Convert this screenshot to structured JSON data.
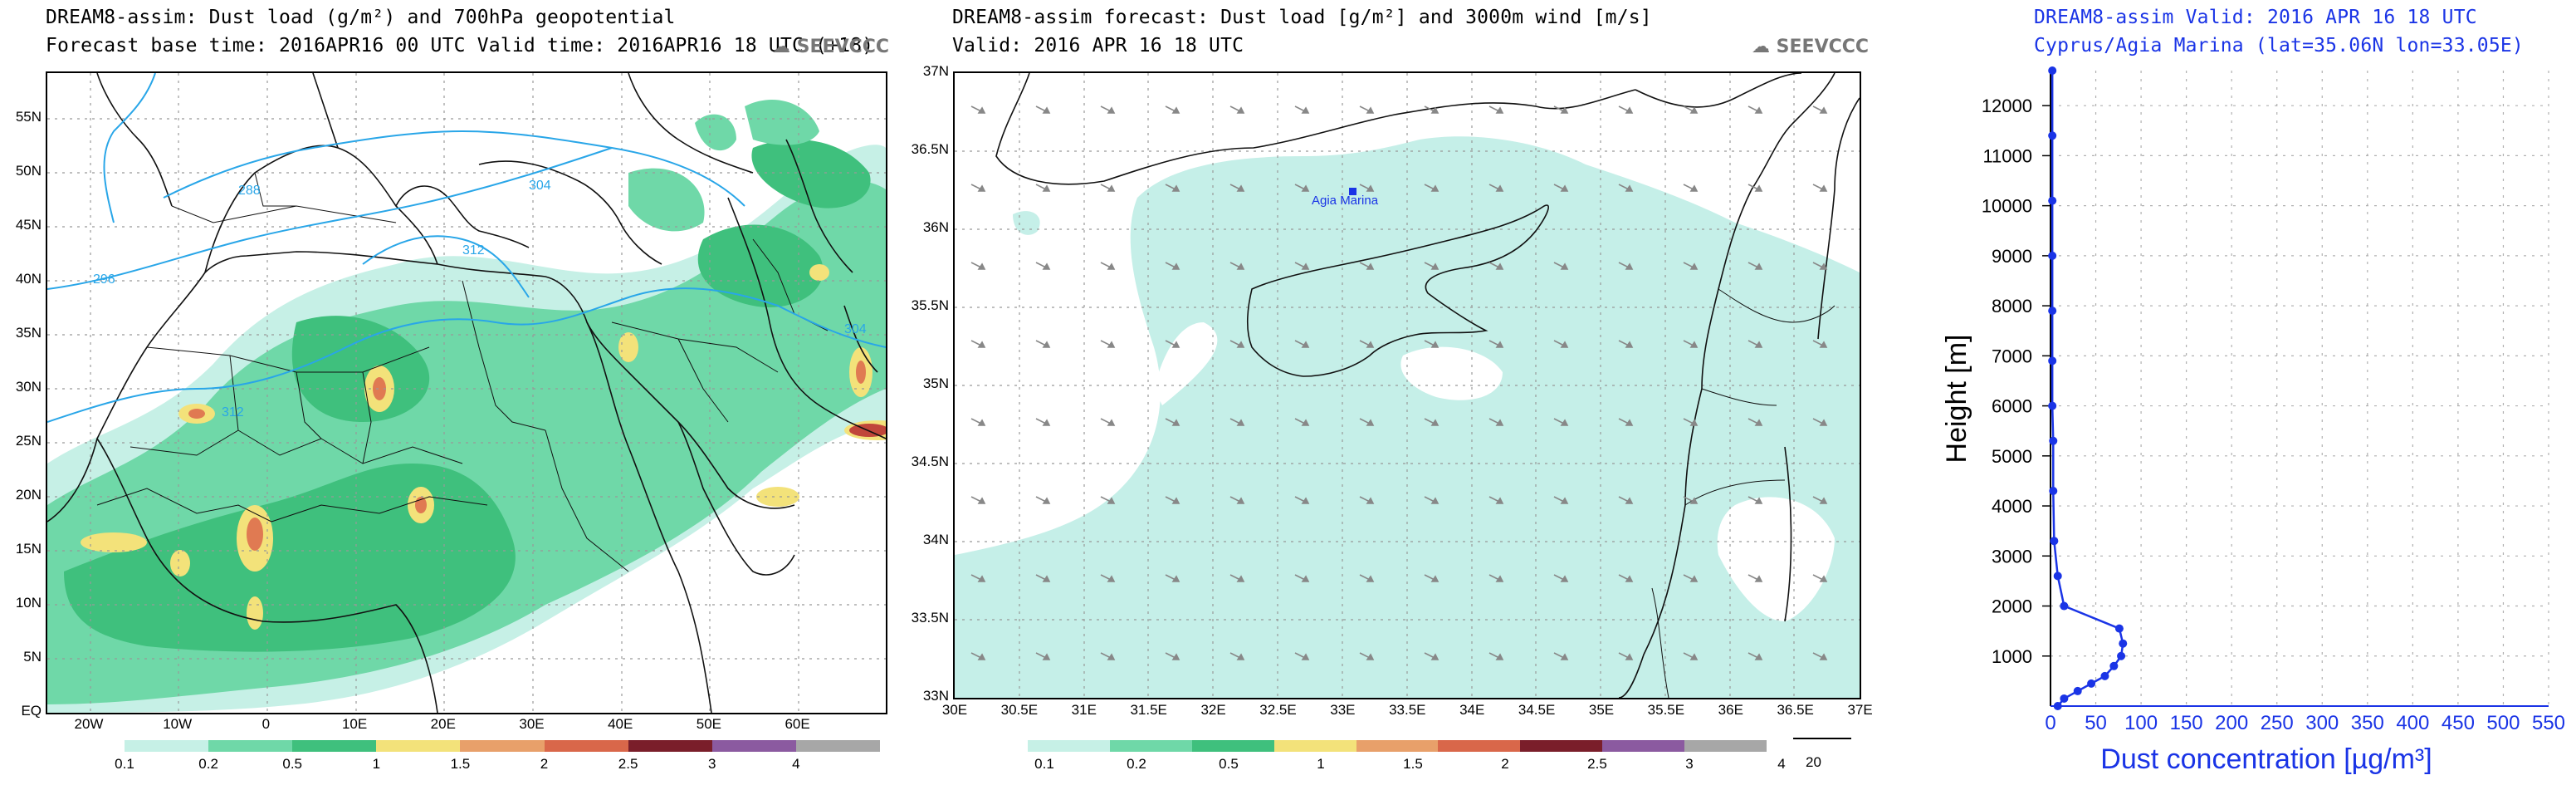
{
  "panel1": {
    "title_line1": "DREAM8-assim: Dust load (g/m²) and 700hPa geopotential",
    "title_line2": "Forecast base time: 2016APR16 00 UTC  Valid time: 2016APR16 18 UTC  (+18)",
    "logo": "SEEVCCC",
    "lat_ticks": [
      "55N",
      "50N",
      "45N",
      "40N",
      "35N",
      "30N",
      "25N",
      "20N",
      "15N",
      "10N",
      "5N",
      "EQ"
    ],
    "lon_ticks": [
      "20W",
      "10W",
      "0",
      "10E",
      "20E",
      "30E",
      "40E",
      "50E",
      "60E"
    ],
    "contour_labels": [
      "288",
      "296",
      "304",
      "312",
      "312",
      "304"
    ],
    "colorbar_labels": [
      "0.1",
      "0.2",
      "0.5",
      "1",
      "1.5",
      "2",
      "2.5",
      "3",
      "4"
    ]
  },
  "panel2": {
    "title_line1": "DREAM8-assim forecast: Dust load [g/m²] and 3000m wind [m/s]",
    "title_line2": "Valid: 2016 APR 16  18 UTC",
    "logo": "SEEVCCC",
    "lat_ticks": [
      "37N",
      "36.5N",
      "36N",
      "35.5N",
      "35N",
      "34.5N",
      "34N",
      "33.5N",
      "33N"
    ],
    "lon_ticks": [
      "30E",
      "30.5E",
      "31E",
      "31.5E",
      "32E",
      "32.5E",
      "33E",
      "33.5E",
      "34E",
      "34.5E",
      "35E",
      "35.5E",
      "36E",
      "36.5E",
      "37E"
    ],
    "station_label": "Agia Marina",
    "colorbar_labels": [
      "0.1",
      "0.2",
      "0.5",
      "1",
      "1.5",
      "2",
      "2.5",
      "3",
      "4"
    ],
    "wind_ref_label": "20"
  },
  "panel3": {
    "title_line1": "DREAM8-assim  Valid: 2016 APR 16  18 UTC",
    "title_line2": "Cyprus/Agia Marina (lat=35.06N lon=33.05E)",
    "colors": {
      "profile": "#1a34e6"
    },
    "chart_data": {
      "type": "line",
      "xlabel": "Dust concentration [µg/m³]",
      "ylabel": "Height [m]",
      "xlim": [
        0,
        550
      ],
      "ylim": [
        0,
        12700
      ],
      "x_ticks": [
        0,
        50,
        100,
        150,
        200,
        250,
        300,
        350,
        400,
        450,
        500,
        550
      ],
      "y_ticks": [
        1000,
        2000,
        3000,
        4000,
        5000,
        6000,
        7000,
        8000,
        9000,
        10000,
        11000,
        12000
      ],
      "grid": true,
      "series": [
        {
          "points": [
            {
              "x": 8,
              "y": 0
            },
            {
              "x": 15,
              "y": 150
            },
            {
              "x": 30,
              "y": 300
            },
            {
              "x": 45,
              "y": 450
            },
            {
              "x": 60,
              "y": 600
            },
            {
              "x": 70,
              "y": 800
            },
            {
              "x": 78,
              "y": 1000
            },
            {
              "x": 80,
              "y": 1250
            },
            {
              "x": 76,
              "y": 1550
            },
            {
              "x": 15,
              "y": 2000
            },
            {
              "x": 8,
              "y": 2600
            },
            {
              "x": 4,
              "y": 3300
            },
            {
              "x": 3,
              "y": 4300
            },
            {
              "x": 3,
              "y": 5300
            },
            {
              "x": 2,
              "y": 6000
            },
            {
              "x": 2,
              "y": 6900
            },
            {
              "x": 2,
              "y": 7900
            },
            {
              "x": 2,
              "y": 9000
            },
            {
              "x": 2,
              "y": 10100
            },
            {
              "x": 2,
              "y": 11400
            },
            {
              "x": 2,
              "y": 12700
            }
          ]
        }
      ]
    }
  }
}
